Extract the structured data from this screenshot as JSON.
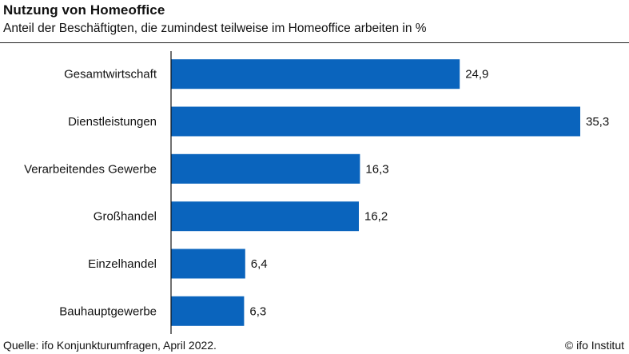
{
  "header": {
    "title": "Nutzung von Homeoffice",
    "subtitle": "Anteil der Beschäftigten, die zumindest teilweise im Homeoffice arbeiten in %"
  },
  "footer": {
    "source": "Quelle: ifo Konjunkturumfragen, April 2022.",
    "copyright": "© ifo Institut"
  },
  "colors": {
    "bar": "#0a64bd",
    "axis": "#111111",
    "text": "#111111"
  },
  "chart_data": {
    "type": "bar",
    "orientation": "horizontal",
    "categories": [
      "Gesamtwirtschaft",
      "Dienstleistungen",
      "Verarbeitendes Gewerbe",
      "Großhandel",
      "Einzelhandel",
      "Bauhauptgewerbe"
    ],
    "values": [
      24.9,
      35.3,
      16.3,
      16.2,
      6.4,
      6.3
    ],
    "value_labels": [
      "24,9",
      "35,3",
      "16,3",
      "16,2",
      "6,4",
      "6,3"
    ],
    "xlim": [
      0,
      35.3
    ],
    "grid": false,
    "legend": "none"
  }
}
